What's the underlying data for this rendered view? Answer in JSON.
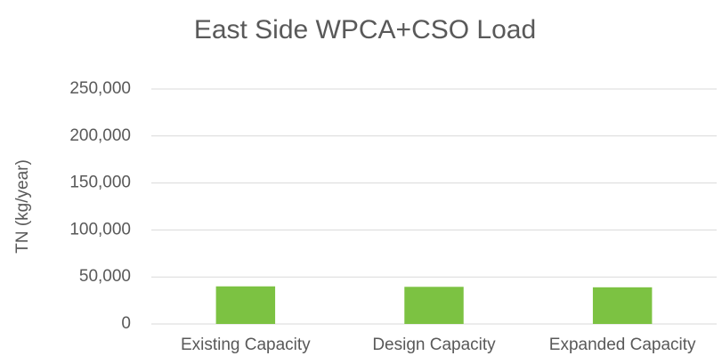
{
  "chart_data": {
    "type": "bar",
    "title": "East Side WPCA+CSO Load",
    "y_label": "TN (kg/year)",
    "categories": [
      "Existing Capacity",
      "Design Capacity",
      "Expanded Capacity"
    ],
    "values": [
      40000,
      39500,
      39000
    ],
    "color": "#7cc242",
    "ylim": [
      0,
      250000
    ],
    "yticks": [
      0,
      {
        "value": 50000,
        "label": "50,000"
      },
      {
        "value": 100000,
        "label": "100,000"
      },
      {
        "value": 150000,
        "label": "150,000"
      },
      {
        "value": 200000,
        "label": "200,000"
      },
      {
        "value": 250000,
        "label": "250,000"
      }
    ],
    "grid": true
  }
}
